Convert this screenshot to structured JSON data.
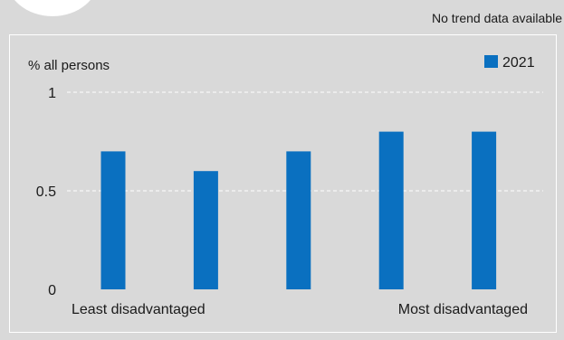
{
  "note": "No trend data available",
  "chart_data": {
    "type": "bar",
    "ylabel": "% all persons",
    "categories": [
      "",
      "",
      "",
      "",
      ""
    ],
    "series": [
      {
        "name": "2021",
        "values": [
          0.7,
          0.6,
          0.7,
          0.8,
          0.8
        ]
      }
    ],
    "ylim": [
      0,
      1
    ],
    "yticks": [
      {
        "value": 0,
        "label": "0"
      },
      {
        "value": 0.5,
        "label": "0.5"
      },
      {
        "value": 1,
        "label": "1"
      }
    ],
    "x_end_labels": {
      "left": "Least disadvantaged",
      "right": "Most disadvantaged"
    },
    "grid": true,
    "legend_position": "top-right",
    "colors": {
      "bar": "#0a70c0",
      "grid": "#ffffff",
      "background": "#d9d9d9"
    }
  }
}
